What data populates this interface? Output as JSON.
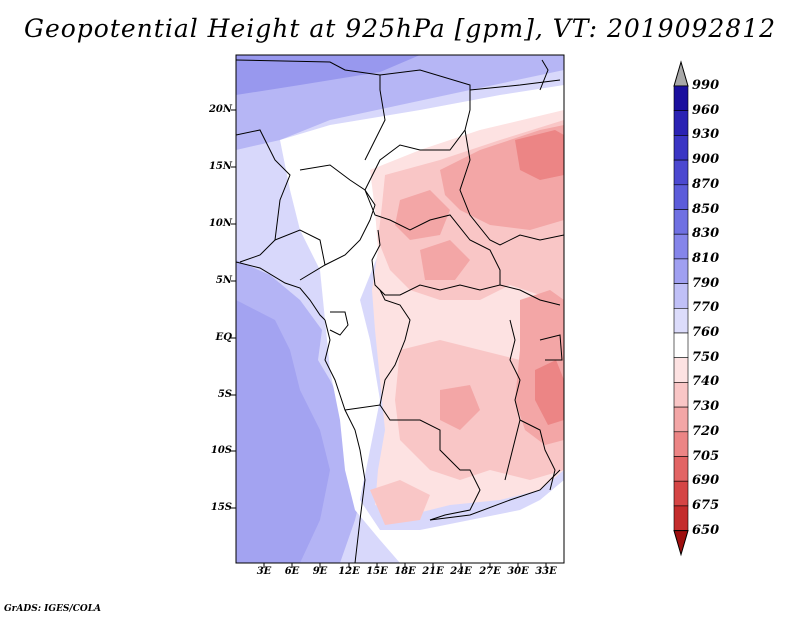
{
  "title": "Geopotential Height at 925hPa [gpm], VT: 2019092812",
  "lat_labels": [
    "20N",
    "15N",
    "10N",
    "5N",
    "EQ",
    "5S",
    "10S",
    "15S"
  ],
  "lon_labels": [
    "3E",
    "6E",
    "9E",
    "12E",
    "15E",
    "18E",
    "21E",
    "24E",
    "27E",
    "30E",
    "33E"
  ],
  "colorbar": {
    "levels": [
      "990",
      "960",
      "930",
      "900",
      "870",
      "850",
      "830",
      "810",
      "790",
      "770",
      "760",
      "750",
      "740",
      "730",
      "720",
      "705",
      "690",
      "675",
      "650"
    ],
    "colors": [
      "#1a0f9e",
      "#2a22b3",
      "#3a35c4",
      "#4b48d0",
      "#5c5cda",
      "#6f70e2",
      "#8585ea",
      "#a0a0f1",
      "#c0c0f7",
      "#dcdcfb",
      "#ffffff",
      "#fde2e2",
      "#f9c6c6",
      "#f3a6a6",
      "#ec8585",
      "#e26464",
      "#d54545",
      "#c42c2c",
      "#b01818"
    ],
    "over_color": "#a8a8a8",
    "under_color": "#9e0f0f"
  },
  "credit": "GrADS: IGES/COLA"
}
